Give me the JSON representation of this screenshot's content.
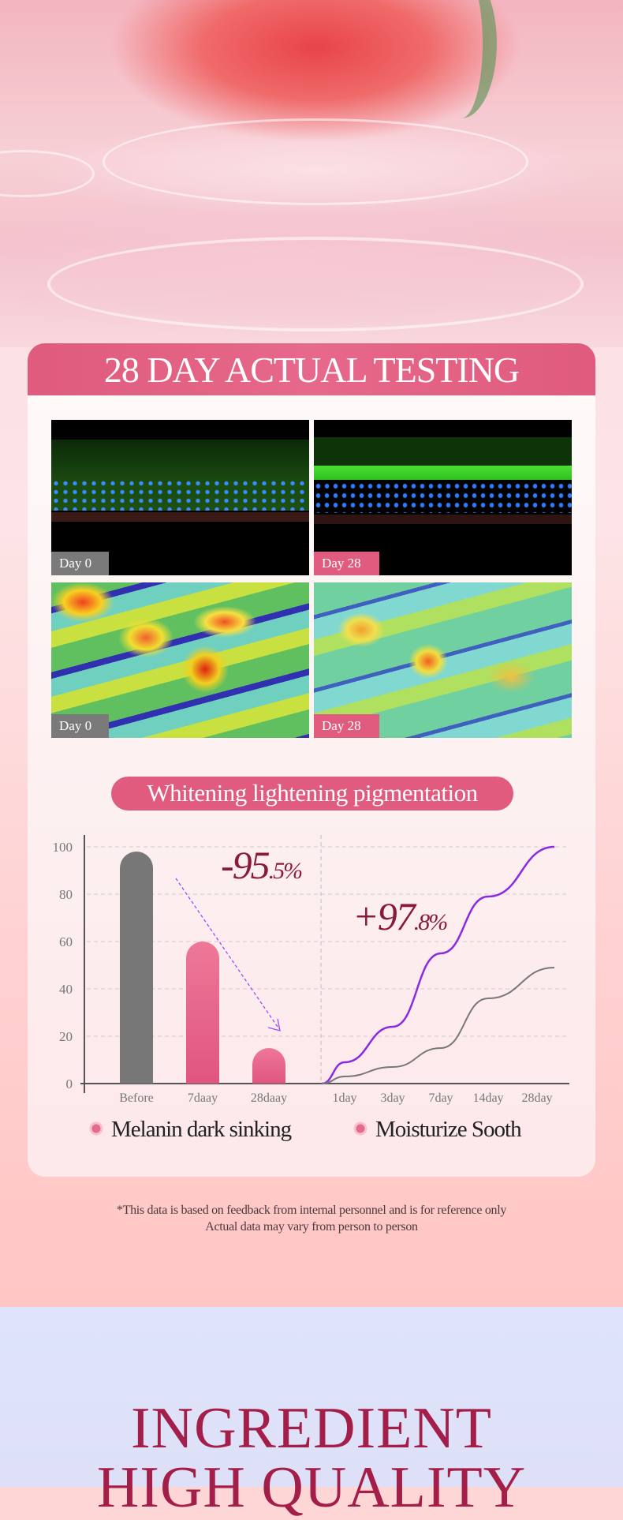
{
  "title": "28 DAY ACTUAL TESTING",
  "panels": [
    {
      "label": "Day 0"
    },
    {
      "label": "Day 28"
    },
    {
      "label": "Day 0"
    },
    {
      "label": "Day 28"
    }
  ],
  "pill": "Whitening lightening pigmentation",
  "colors": {
    "accent": "#e05b7d",
    "dark_red": "#8a1a3a",
    "purple": "#8a2be2",
    "gray": "#777777",
    "heading": "#a31e48"
  },
  "chart_data": [
    {
      "type": "bar",
      "categories": [
        "Before",
        "7daay",
        "28daay"
      ],
      "values": [
        98,
        60,
        15
      ],
      "ylim": [
        0,
        100
      ],
      "yticks": [
        0,
        20,
        40,
        60,
        80,
        100
      ],
      "grid": true,
      "annotation": {
        "main": "-95",
        "decimal": ".5%"
      },
      "legend": "Melanin dark sinking"
    },
    {
      "type": "line",
      "categories": [
        "1day",
        "3day",
        "7day",
        "14day",
        "28day"
      ],
      "series": [
        {
          "color": "#8a2be2",
          "values": [
            9,
            24,
            55,
            79,
            100
          ]
        },
        {
          "color": "#777777",
          "values": [
            3,
            7,
            15,
            36,
            49
          ]
        }
      ],
      "ylim": [
        0,
        100
      ],
      "grid": true,
      "annotation": {
        "main": "+97",
        "decimal": ".8%"
      },
      "legend": "Moisturize Sooth"
    }
  ],
  "footnote": [
    "*This data is based on feedback from internal personnel and is for reference only",
    "Actual data may vary from person to person"
  ],
  "section2": {
    "line1": "INGREDIENT",
    "line2": "HIGH QUALITY"
  },
  "icons": [
    "legend-dot-icon",
    "arrow-down-right-icon"
  ]
}
